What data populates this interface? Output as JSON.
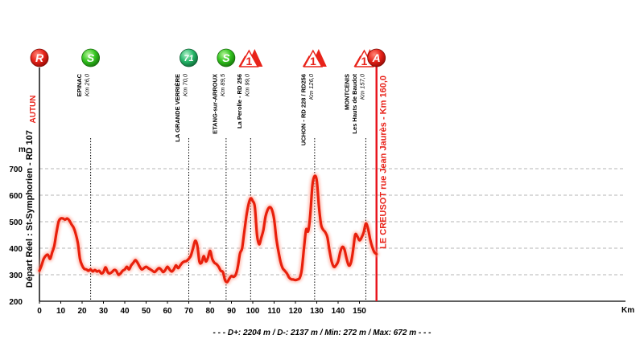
{
  "chart_data": {
    "type": "area",
    "ylabel": "m",
    "xlabel": "Km",
    "xlim": [
      0,
      160
    ],
    "ylim": [
      200,
      700
    ],
    "x_ticks": [
      0,
      10,
      20,
      30,
      40,
      50,
      60,
      70,
      80,
      90,
      100,
      110,
      120,
      130,
      140,
      150
    ],
    "y_ticks": [
      200,
      300,
      400,
      500,
      600,
      700
    ],
    "summary": "- - - D+: 2204 m / D-: 2137 m / Min: 272 m / Max: 672 m - - -",
    "profile": [
      {
        "x": 0,
        "y": 315
      },
      {
        "x": 1,
        "y": 335
      },
      {
        "x": 2,
        "y": 360
      },
      {
        "x": 3,
        "y": 372
      },
      {
        "x": 4,
        "y": 375
      },
      {
        "x": 5,
        "y": 360
      },
      {
        "x": 6,
        "y": 385
      },
      {
        "x": 7,
        "y": 410
      },
      {
        "x": 8,
        "y": 460
      },
      {
        "x": 9,
        "y": 500
      },
      {
        "x": 10,
        "y": 512
      },
      {
        "x": 11,
        "y": 512
      },
      {
        "x": 12,
        "y": 508
      },
      {
        "x": 13,
        "y": 512
      },
      {
        "x": 14,
        "y": 505
      },
      {
        "x": 15,
        "y": 490
      },
      {
        "x": 16,
        "y": 478
      },
      {
        "x": 17,
        "y": 455
      },
      {
        "x": 18,
        "y": 420
      },
      {
        "x": 19,
        "y": 360
      },
      {
        "x": 20,
        "y": 335
      },
      {
        "x": 21,
        "y": 322
      },
      {
        "x": 22,
        "y": 320
      },
      {
        "x": 23,
        "y": 315
      },
      {
        "x": 24,
        "y": 320
      },
      {
        "x": 25,
        "y": 312
      },
      {
        "x": 26,
        "y": 318
      },
      {
        "x": 27,
        "y": 312
      },
      {
        "x": 28,
        "y": 315
      },
      {
        "x": 29,
        "y": 305
      },
      {
        "x": 30,
        "y": 310
      },
      {
        "x": 31,
        "y": 328
      },
      {
        "x": 32,
        "y": 310
      },
      {
        "x": 33,
        "y": 305
      },
      {
        "x": 34,
        "y": 310
      },
      {
        "x": 35,
        "y": 318
      },
      {
        "x": 36,
        "y": 315
      },
      {
        "x": 37,
        "y": 300
      },
      {
        "x": 38,
        "y": 305
      },
      {
        "x": 39,
        "y": 315
      },
      {
        "x": 40,
        "y": 320
      },
      {
        "x": 41,
        "y": 330
      },
      {
        "x": 42,
        "y": 320
      },
      {
        "x": 43,
        "y": 335
      },
      {
        "x": 44,
        "y": 345
      },
      {
        "x": 45,
        "y": 355
      },
      {
        "x": 46,
        "y": 345
      },
      {
        "x": 47,
        "y": 330
      },
      {
        "x": 48,
        "y": 320
      },
      {
        "x": 49,
        "y": 325
      },
      {
        "x": 50,
        "y": 330
      },
      {
        "x": 51,
        "y": 325
      },
      {
        "x": 52,
        "y": 320
      },
      {
        "x": 53,
        "y": 315
      },
      {
        "x": 54,
        "y": 310
      },
      {
        "x": 55,
        "y": 318
      },
      {
        "x": 56,
        "y": 325
      },
      {
        "x": 57,
        "y": 320
      },
      {
        "x": 58,
        "y": 310
      },
      {
        "x": 59,
        "y": 318
      },
      {
        "x": 60,
        "y": 330
      },
      {
        "x": 61,
        "y": 320
      },
      {
        "x": 62,
        "y": 312
      },
      {
        "x": 63,
        "y": 320
      },
      {
        "x": 64,
        "y": 335
      },
      {
        "x": 65,
        "y": 325
      },
      {
        "x": 66,
        "y": 335
      },
      {
        "x": 67,
        "y": 345
      },
      {
        "x": 68,
        "y": 350
      },
      {
        "x": 69,
        "y": 352
      },
      {
        "x": 70,
        "y": 360
      },
      {
        "x": 71,
        "y": 372
      },
      {
        "x": 72,
        "y": 400
      },
      {
        "x": 73,
        "y": 428
      },
      {
        "x": 74,
        "y": 410
      },
      {
        "x": 75,
        "y": 350
      },
      {
        "x": 76,
        "y": 345
      },
      {
        "x": 77,
        "y": 370
      },
      {
        "x": 78,
        "y": 350
      },
      {
        "x": 79,
        "y": 365
      },
      {
        "x": 80,
        "y": 390
      },
      {
        "x": 81,
        "y": 360
      },
      {
        "x": 82,
        "y": 345
      },
      {
        "x": 83,
        "y": 340
      },
      {
        "x": 84,
        "y": 330
      },
      {
        "x": 85,
        "y": 315
      },
      {
        "x": 86,
        "y": 310
      },
      {
        "x": 87,
        "y": 280
      },
      {
        "x": 88,
        "y": 272
      },
      {
        "x": 89,
        "y": 285
      },
      {
        "x": 90,
        "y": 295
      },
      {
        "x": 91,
        "y": 292
      },
      {
        "x": 92,
        "y": 300
      },
      {
        "x": 93,
        "y": 330
      },
      {
        "x": 94,
        "y": 380
      },
      {
        "x": 95,
        "y": 400
      },
      {
        "x": 96,
        "y": 460
      },
      {
        "x": 97,
        "y": 520
      },
      {
        "x": 98,
        "y": 565
      },
      {
        "x": 99,
        "y": 588
      },
      {
        "x": 100,
        "y": 578
      },
      {
        "x": 101,
        "y": 555
      },
      {
        "x": 102,
        "y": 450
      },
      {
        "x": 103,
        "y": 415
      },
      {
        "x": 104,
        "y": 440
      },
      {
        "x": 105,
        "y": 470
      },
      {
        "x": 106,
        "y": 520
      },
      {
        "x": 107,
        "y": 545
      },
      {
        "x": 108,
        "y": 555
      },
      {
        "x": 109,
        "y": 545
      },
      {
        "x": 110,
        "y": 510
      },
      {
        "x": 111,
        "y": 440
      },
      {
        "x": 112,
        "y": 390
      },
      {
        "x": 113,
        "y": 350
      },
      {
        "x": 114,
        "y": 325
      },
      {
        "x": 115,
        "y": 315
      },
      {
        "x": 116,
        "y": 305
      },
      {
        "x": 117,
        "y": 290
      },
      {
        "x": 118,
        "y": 283
      },
      {
        "x": 119,
        "y": 282
      },
      {
        "x": 120,
        "y": 280
      },
      {
        "x": 121,
        "y": 282
      },
      {
        "x": 122,
        "y": 288
      },
      {
        "x": 123,
        "y": 320
      },
      {
        "x": 124,
        "y": 400
      },
      {
        "x": 125,
        "y": 470
      },
      {
        "x": 126,
        "y": 465
      },
      {
        "x": 127,
        "y": 530
      },
      {
        "x": 128,
        "y": 640
      },
      {
        "x": 129,
        "y": 672
      },
      {
        "x": 130,
        "y": 655
      },
      {
        "x": 131,
        "y": 560
      },
      {
        "x": 132,
        "y": 490
      },
      {
        "x": 133,
        "y": 470
      },
      {
        "x": 134,
        "y": 460
      },
      {
        "x": 135,
        "y": 440
      },
      {
        "x": 136,
        "y": 390
      },
      {
        "x": 137,
        "y": 350
      },
      {
        "x": 138,
        "y": 330
      },
      {
        "x": 139,
        "y": 335
      },
      {
        "x": 140,
        "y": 350
      },
      {
        "x": 141,
        "y": 385
      },
      {
        "x": 142,
        "y": 405
      },
      {
        "x": 143,
        "y": 395
      },
      {
        "x": 144,
        "y": 360
      },
      {
        "x": 145,
        "y": 335
      },
      {
        "x": 146,
        "y": 345
      },
      {
        "x": 147,
        "y": 390
      },
      {
        "x": 148,
        "y": 450
      },
      {
        "x": 149,
        "y": 445
      },
      {
        "x": 150,
        "y": 430
      },
      {
        "x": 151,
        "y": 440
      },
      {
        "x": 152,
        "y": 460
      },
      {
        "x": 153,
        "y": 493
      },
      {
        "x": 154,
        "y": 475
      },
      {
        "x": 155,
        "y": 435
      },
      {
        "x": 156,
        "y": 405
      },
      {
        "x": 157,
        "y": 385
      },
      {
        "x": 158,
        "y": 378
      }
    ],
    "markers": [
      {
        "km": 0,
        "type": "R",
        "line": "solid",
        "label": "AUTUN",
        "sublabel": "Départ Réel : St-Symphorien - RD 107"
      },
      {
        "km": 24,
        "type": "S",
        "line": "dotted",
        "label": "EPINAC",
        "sublabel": "Km 26,0"
      },
      {
        "km": 70,
        "type": "71",
        "line": "dotted",
        "label": "LA GRANDE VERRIÈRE",
        "sublabel": "Km 70,0"
      },
      {
        "km": 87.5,
        "type": "S",
        "line": "dotted",
        "label": "ETANG-sur-ARROUX",
        "sublabel": "Km 89,5"
      },
      {
        "km": 99,
        "type": "climb",
        "climb_category": "1",
        "line": "dotted",
        "label": "La Perolle - RD 256",
        "sublabel": "Km 99,0"
      },
      {
        "km": 129,
        "type": "climb",
        "climb_category": "1",
        "line": "dotted",
        "label": "UCHON - RD 228 / RD256",
        "sublabel": "Km 126,0"
      },
      {
        "km": 153,
        "type": "climb",
        "climb_category": "1",
        "line": "dotted",
        "label": "MONTCENIS",
        "label2": "Les Hauts de Baudot",
        "sublabel": "Km 157,0"
      },
      {
        "km": 158,
        "type": "A",
        "line": "red",
        "label": "LE CREUSOT rue Jean Jaurès - Km 160,0"
      }
    ],
    "colors": {
      "profile": "#e8200c",
      "marker_start_finish": "#e8231a",
      "sprint": "#33c41f",
      "feed_zone": "#27b86a",
      "climb": "#e8231a",
      "finish_line": "#e8111a",
      "grid": "#9e9e9e"
    }
  }
}
